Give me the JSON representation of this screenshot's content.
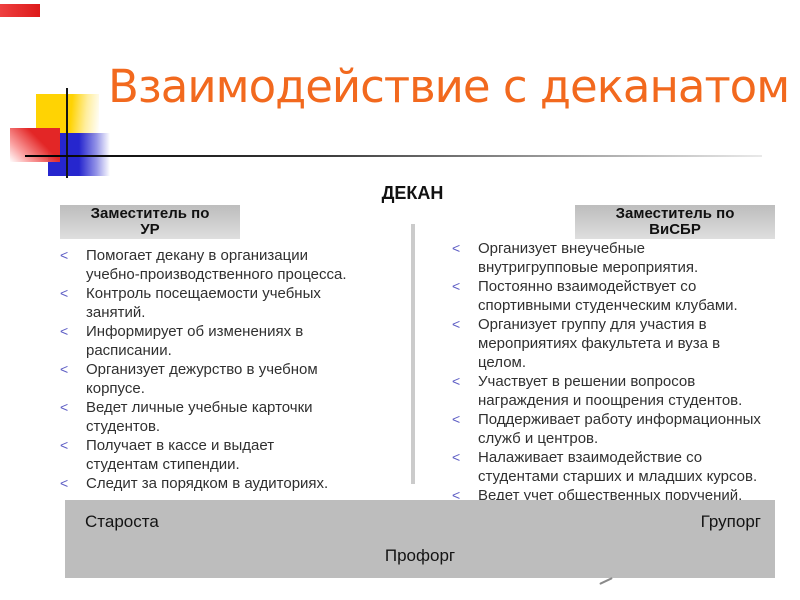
{
  "slide_title": "Взаимодействие с деканатом",
  "dean_label": "ДЕКАН",
  "bullet_char": "<",
  "left_column": {
    "header_line1": "Заместитель по",
    "header_line2": "УР",
    "items": [
      "Помогает декану в организации\nучебно-производственного процесса.",
      "Контроль посещаемости учебных\nзанятий.",
      "Информирует об изменениях в\nрасписании.",
      "Организует дежурство в учебном\nкорпусе.",
      "Ведет личные учебные карточки\nстудентов.",
      "Получает в кассе и выдает\nстудентам стипендии.",
      "Следит за порядком в аудиториях."
    ]
  },
  "right_column": {
    "header_line1": "Заместитель по",
    "header_line2": "ВиСБР",
    "items": [
      "Организует внеучебные\nвнутригрупповые мероприятия.",
      "Постоянно взаимодействует со\nспортивными студенческим клубами.",
      "Организует группу для участия в\nмероприятиях факультета и вуза в\nцелом.",
      "Участвует в решении вопросов\nнаграждения и поощрения студентов.",
      "Поддерживает работу информационных\nслужб и центров.",
      "Налаживает взаимодействие со\nстудентами старших и младших курсов.",
      "Ведет учет общественных поручений."
    ]
  },
  "bottom_bar": {
    "left_label": "Староста",
    "right_label": "Групорг",
    "center_label": "Профорг"
  },
  "colors": {
    "title-color": "#F2691E",
    "bullet-color": "#5C5CC4",
    "text-color": "#303030",
    "header-top": "#BDBDBD",
    "header-bottom": "#DEDEDE",
    "bar-color": "#BDBDBD",
    "divider-color": "#CBCBCB",
    "accent-yellow": "#FFD303",
    "accent-red": "#E32626",
    "accent-blue": "#2626CE"
  }
}
